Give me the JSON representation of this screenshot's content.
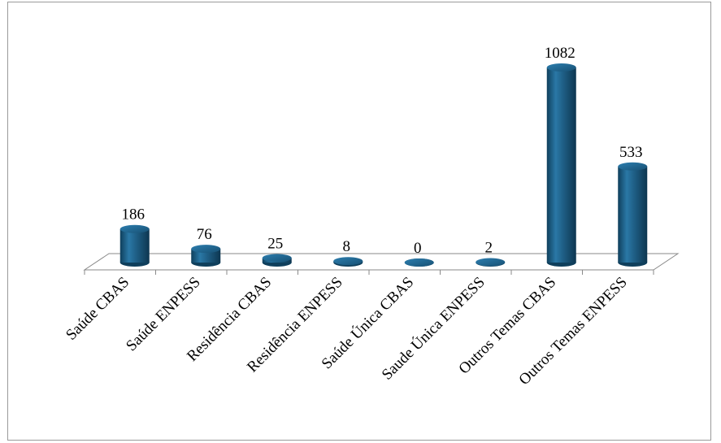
{
  "chart_data": {
    "type": "bar",
    "title": "",
    "xlabel": "",
    "ylabel": "",
    "categories": [
      "Saúde CBAS",
      "Saúde ENPESS",
      "Residência CBAS",
      "Residência ENPESS",
      "Saúde Única CBAS",
      "Saude Única ENPESS",
      "Outros Temas CBAS",
      "Outros Temas ENPESS"
    ],
    "values": [
      186,
      76,
      25,
      8,
      0,
      2,
      1082,
      533
    ],
    "data_labels": [
      "186",
      "76",
      "25",
      "8",
      "0",
      "2",
      "1082",
      "533"
    ],
    "ylim": [
      0,
      1082
    ],
    "grid": false,
    "legend": "none",
    "bar_color": "#1f5f86"
  }
}
